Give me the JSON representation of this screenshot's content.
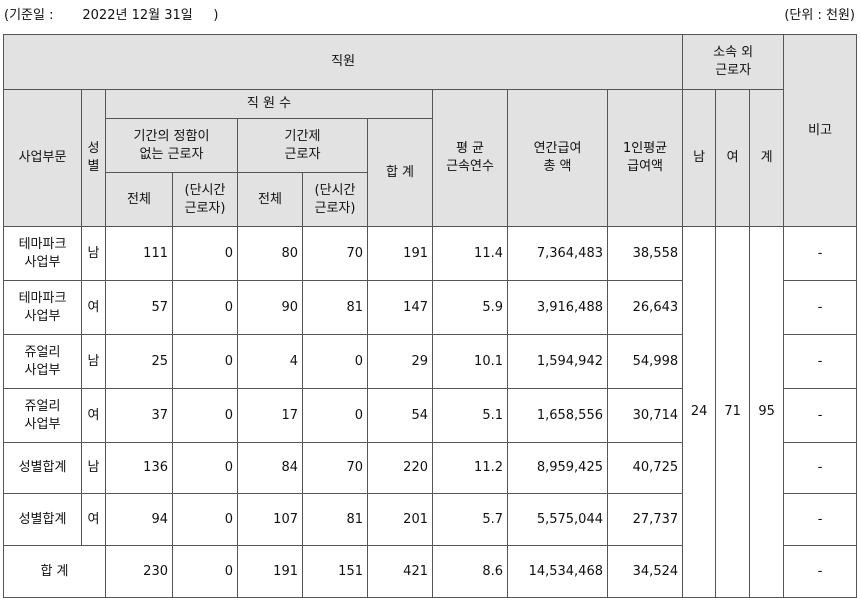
{
  "caption": {
    "base_date": "(기준일 :       2022년 12월 31일     )",
    "unit": "(단위 : 천원)"
  },
  "headers": {
    "staff": "직원",
    "affiliated_outside": "소속 외\n근로자",
    "remarks": "비고",
    "business": "사업부문",
    "gender": "성\n별",
    "staff_count": "직 원 수",
    "no_fixed_term": "기간의 정함이\n없는 근로자",
    "fixed_term": "기간제\n근로자",
    "total_col": "합 계",
    "avg_tenure": "평 균\n근속연수",
    "annual_pay": "연간급여\n총 액",
    "per_capita": "1인평균\n급여액",
    "male": "남",
    "female": "여",
    "sum": "계",
    "all_1": "전체",
    "part_time_1": "(단시간\n근로자)",
    "all_2": "전체",
    "part_time_2": "(단시간\n근로자)"
  },
  "rows": [
    {
      "division": "테마파크\n사업부",
      "gender": "남",
      "reg_total": "111",
      "reg_part": "0",
      "fix_total": "80",
      "fix_part": "70",
      "total": "191",
      "tenure": "11.4",
      "pay_total": "7,364,483",
      "pay_avg": "38,558",
      "remark": "-"
    },
    {
      "division": "테마파크\n사업부",
      "gender": "여",
      "reg_total": "57",
      "reg_part": "0",
      "fix_total": "90",
      "fix_part": "81",
      "total": "147",
      "tenure": "5.9",
      "pay_total": "3,916,488",
      "pay_avg": "26,643",
      "remark": "-"
    },
    {
      "division": "쥬얼리\n사업부",
      "gender": "남",
      "reg_total": "25",
      "reg_part": "0",
      "fix_total": "4",
      "fix_part": "0",
      "total": "29",
      "tenure": "10.1",
      "pay_total": "1,594,942",
      "pay_avg": "54,998",
      "remark": "-"
    },
    {
      "division": "쥬얼리\n사업부",
      "gender": "여",
      "reg_total": "37",
      "reg_part": "0",
      "fix_total": "17",
      "fix_part": "0",
      "total": "54",
      "tenure": "5.1",
      "pay_total": "1,658,556",
      "pay_avg": "30,714",
      "remark": "-"
    },
    {
      "division": "성별합계",
      "gender": "남",
      "reg_total": "136",
      "reg_part": "0",
      "fix_total": "84",
      "fix_part": "70",
      "total": "220",
      "tenure": "11.2",
      "pay_total": "8,959,425",
      "pay_avg": "40,725",
      "remark": "-"
    },
    {
      "division": "성별합계",
      "gender": "여",
      "reg_total": "94",
      "reg_part": "0",
      "fix_total": "107",
      "fix_part": "81",
      "total": "201",
      "tenure": "5.7",
      "pay_total": "5,575,044",
      "pay_avg": "27,737",
      "remark": "-"
    }
  ],
  "total_row": {
    "label": "합 계",
    "reg_total": "230",
    "reg_part": "0",
    "fix_total": "191",
    "fix_part": "151",
    "total": "421",
    "tenure": "8.6",
    "pay_total": "14,534,468",
    "pay_avg": "34,524",
    "remark": "-"
  },
  "outside_workers": {
    "male": "24",
    "female": "71",
    "sum": "95"
  }
}
